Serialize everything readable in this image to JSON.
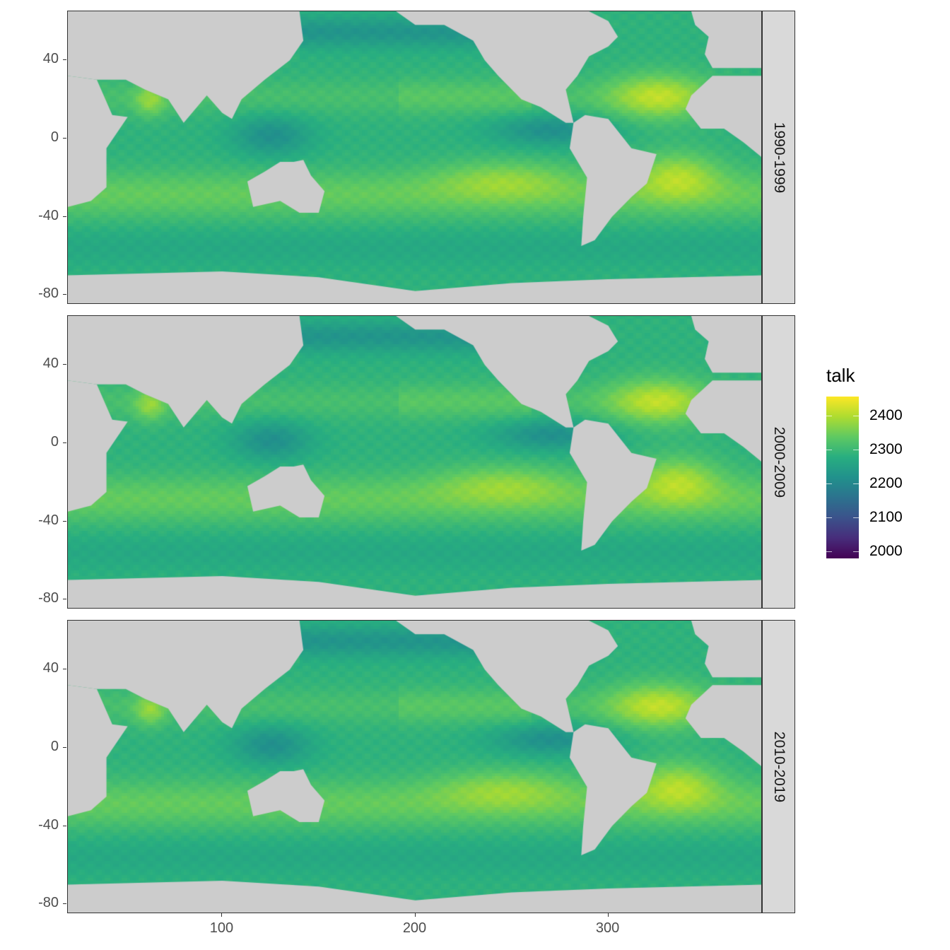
{
  "chart_data": {
    "type": "heatmap",
    "facets": [
      "1990-1999",
      "2000-2009",
      "2010-2019"
    ],
    "facet_direction": "rows, strip on right",
    "xlabel": "",
    "ylabel": "",
    "xlim": [
      20,
      380
    ],
    "ylim": [
      -85,
      65
    ],
    "x_ticks": [
      "100",
      "200",
      "300"
    ],
    "y_ticks": [
      "40",
      "0",
      "-40",
      "-80"
    ],
    "legend": {
      "title": "talk",
      "placement": "right",
      "colormap": "viridis",
      "range": [
        1980,
        2455
      ],
      "ticks": [
        "2400",
        "2300",
        "2200",
        "2100",
        "2000"
      ]
    },
    "land_color": "#cccccc",
    "grid": false
  }
}
